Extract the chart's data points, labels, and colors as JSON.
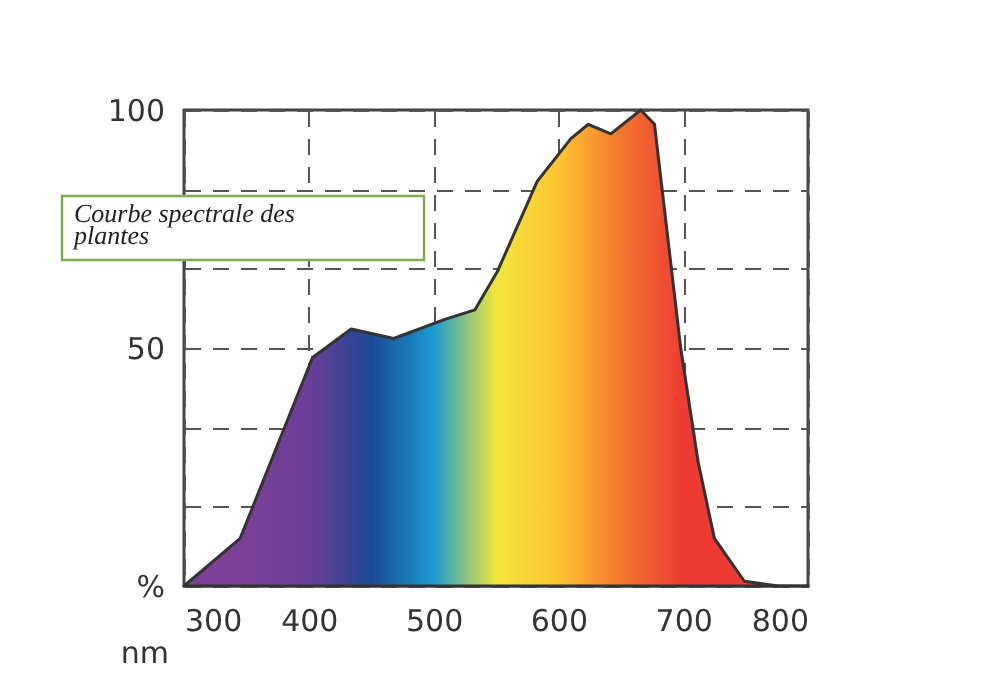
{
  "chart_data": {
    "type": "area",
    "x": [
      300,
      345,
      403,
      434,
      468,
      509,
      533,
      551,
      583,
      610,
      624,
      642,
      666,
      677,
      698,
      712,
      725,
      749,
      776,
      800
    ],
    "series": [
      {
        "values": [
          0,
          10,
          48,
          54,
          52,
          56,
          58,
          66,
          85,
          94,
          97,
          95,
          100,
          97,
          50,
          26,
          10,
          1,
          0,
          0
        ],
        "color": "#333333"
      }
    ],
    "colors": [
      "#7b3f98",
      "#7b3f98",
      "#6c3d97",
      "#1a4a96",
      "#1c9ad0",
      "#f2e63a",
      "#fdc431",
      "#f4772e",
      "#ee3b34",
      "#ee3b34",
      "#ee3b34"
    ],
    "xlabel": "nm",
    "xlim": [
      300,
      800
    ],
    "xticks": [
      300,
      400,
      500,
      600,
      700,
      800
    ],
    "ylim": [
      0,
      100
    ],
    "yticks": [
      {
        "value": 0,
        "label": "%"
      },
      {
        "value": 16.67,
        "label": null
      },
      {
        "value": 33.33,
        "label": null
      },
      {
        "value": 50,
        "label": "50"
      },
      {
        "value": 66.67,
        "label": null
      },
      {
        "value": 83.33,
        "label": null
      },
      {
        "value": 100,
        "label": "100"
      }
    ],
    "grid": true,
    "annotations": [
      "Courbe spectrale des plantes"
    ]
  }
}
